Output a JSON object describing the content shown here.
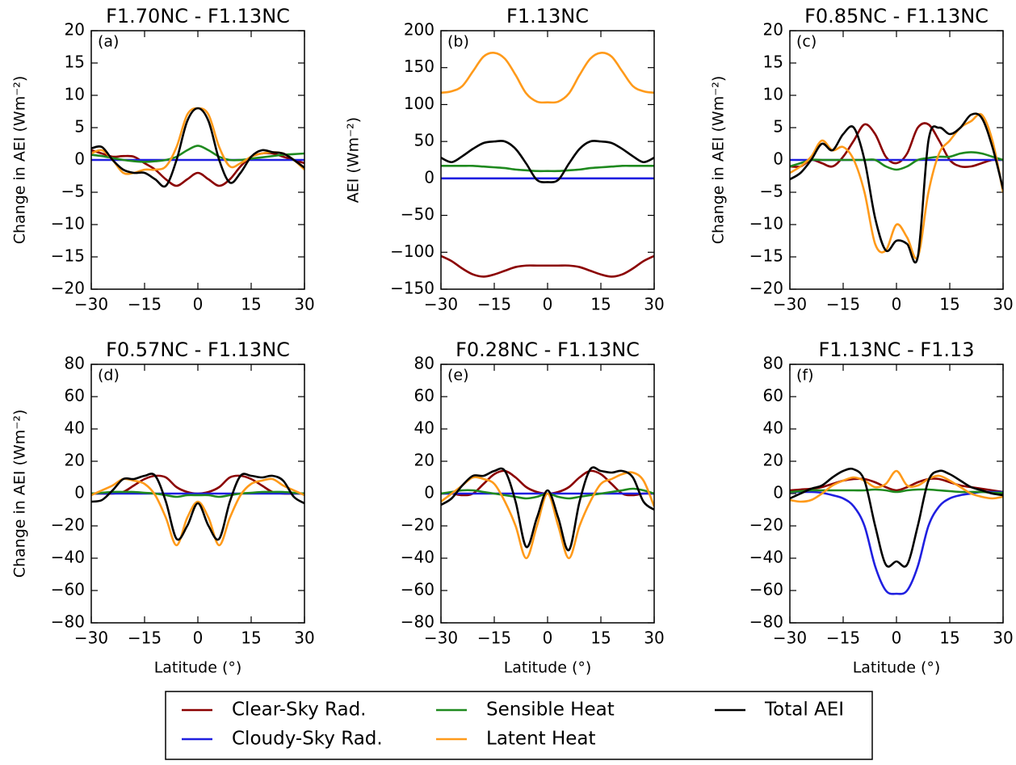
{
  "chart_data": [
    {
      "type": "line",
      "title": "F1.70NC - F1.13NC",
      "panel_label": "(a)",
      "y_label": "Change in AEI (Wm⁻²)",
      "x": [
        -30,
        -27,
        -24,
        -21,
        -18,
        -15,
        -12,
        -9,
        -6,
        -3,
        0,
        3,
        6,
        9,
        12,
        15,
        18,
        21,
        24,
        27,
        30
      ],
      "xlim": [
        -30,
        30
      ],
      "xticks": [
        {
          "value": -30,
          "label": "−30"
        },
        {
          "value": -15,
          "label": "−15"
        },
        0,
        15,
        30
      ],
      "ylim": [
        -20,
        20
      ],
      "yticks": [
        {
          "value": -20,
          "label": "−20"
        },
        {
          "value": -15,
          "label": "−15"
        },
        {
          "value": -10,
          "label": "−10"
        },
        {
          "value": -5,
          "label": "−5"
        },
        0,
        5,
        10,
        15,
        20
      ],
      "series": [
        {
          "values": [
            1.5,
            1,
            0.5,
            0.6,
            0.5,
            -0.5,
            -1.5,
            -3,
            -4,
            -3,
            -2,
            -3,
            -4,
            -3,
            -1,
            0.5,
            1,
            1,
            0.5,
            0,
            -0.5
          ]
        },
        {
          "values": [
            0,
            0,
            0,
            0,
            0,
            0,
            0,
            0,
            0,
            0,
            0,
            0,
            0,
            0,
            0,
            0,
            0,
            0,
            0,
            0,
            0
          ]
        },
        {
          "values": [
            0.8,
            0.6,
            0.3,
            0,
            -0.2,
            -0.3,
            -0.2,
            0,
            0.5,
            1.5,
            2.2,
            1.5,
            0.5,
            0,
            0,
            0.2,
            0.4,
            0.6,
            0.8,
            0.9,
            1
          ]
        },
        {
          "values": [
            1,
            1.5,
            0,
            -2,
            -2,
            -1.5,
            -1.5,
            -1,
            2,
            7,
            8,
            7,
            2,
            -1,
            -0.5,
            0.5,
            1,
            1.2,
            1,
            0,
            -1.5
          ]
        },
        {
          "values": [
            1.8,
            2,
            0,
            -1.5,
            -2,
            -2,
            -3,
            -4,
            0,
            6,
            8,
            6,
            0,
            -3.5,
            -2,
            0.5,
            1.5,
            1.2,
            1,
            0,
            -1.2
          ]
        }
      ]
    },
    {
      "type": "line",
      "title": "F1.13NC",
      "panel_label": "(b)",
      "y_label": "AEI (Wm⁻²)",
      "x": [
        -30,
        -27,
        -24,
        -21,
        -18,
        -15,
        -12,
        -9,
        -6,
        -3,
        0,
        3,
        6,
        9,
        12,
        15,
        18,
        21,
        24,
        27,
        30
      ],
      "xlim": [
        -30,
        30
      ],
      "xticks": [
        {
          "value": -30,
          "label": "−30"
        },
        {
          "value": -15,
          "label": "−15"
        },
        0,
        15,
        30
      ],
      "ylim": [
        -150,
        200
      ],
      "yticks": [
        {
          "value": -150,
          "label": "−150"
        },
        {
          "value": -100,
          "label": "−100"
        },
        {
          "value": -50,
          "label": "−50"
        },
        0,
        50,
        100,
        150,
        200
      ],
      "series": [
        {
          "values": [
            -105,
            -112,
            -122,
            -130,
            -133,
            -130,
            -125,
            -120,
            -118,
            -118,
            -118,
            -118,
            -118,
            -120,
            -125,
            -130,
            -133,
            -130,
            -122,
            -112,
            -105
          ]
        },
        {
          "values": [
            0,
            0,
            0,
            0,
            0,
            0,
            0,
            0,
            0,
            0,
            0,
            0,
            0,
            0,
            0,
            0,
            0,
            0,
            0,
            0,
            0
          ]
        },
        {
          "values": [
            17,
            17,
            17,
            17,
            16,
            15,
            14,
            12,
            11,
            10,
            10,
            10,
            11,
            12,
            14,
            15,
            16,
            17,
            17,
            17,
            17
          ]
        },
        {
          "values": [
            116,
            118,
            125,
            145,
            165,
            170,
            162,
            140,
            115,
            104,
            103,
            104,
            115,
            140,
            162,
            170,
            165,
            145,
            125,
            118,
            116
          ]
        },
        {
          "values": [
            28,
            22,
            30,
            40,
            48,
            50,
            50,
            40,
            20,
            -2,
            -5,
            -2,
            20,
            40,
            50,
            50,
            48,
            40,
            30,
            22,
            28
          ]
        }
      ]
    },
    {
      "type": "line",
      "title": "F0.85NC - F1.13NC",
      "panel_label": "(c)",
      "y_label": "Change in AEI (Wm⁻²)",
      "x": [
        -30,
        -27,
        -24,
        -21,
        -18,
        -15,
        -12,
        -9,
        -6,
        -3,
        0,
        3,
        6,
        9,
        12,
        15,
        18,
        21,
        24,
        27,
        30
      ],
      "xlim": [
        -30,
        30
      ],
      "xticks": [
        {
          "value": -30,
          "label": "−30"
        },
        {
          "value": -15,
          "label": "−15"
        },
        0,
        15,
        30
      ],
      "ylim": [
        -20,
        20
      ],
      "yticks": [
        {
          "value": -20,
          "label": "−20"
        },
        {
          "value": -15,
          "label": "−15"
        },
        {
          "value": -10,
          "label": "−10"
        },
        {
          "value": -5,
          "label": "−5"
        },
        0,
        5,
        10,
        15,
        20
      ],
      "series": [
        {
          "values": [
            -1,
            -1,
            0,
            -0.5,
            -1,
            0.5,
            3,
            5.5,
            4,
            0.5,
            -0.5,
            1,
            5,
            5.5,
            3,
            0,
            -1,
            -1,
            -0.5,
            0,
            0
          ]
        },
        {
          "values": [
            0,
            0,
            0,
            0,
            0,
            0,
            0,
            0,
            0,
            0,
            0,
            0,
            0,
            0,
            0,
            0,
            0,
            0,
            0,
            0,
            0
          ]
        },
        {
          "values": [
            -1,
            -0.5,
            0,
            0,
            0,
            0,
            0,
            0,
            0,
            -1,
            -1.5,
            -1,
            0,
            0.3,
            0.5,
            0.5,
            1,
            1.2,
            1,
            0.5,
            0
          ]
        },
        {
          "values": [
            -2,
            -1,
            0.5,
            3,
            1.5,
            2,
            0,
            -5,
            -13,
            -14,
            -10,
            -12,
            -15,
            -5,
            1,
            3,
            5,
            6,
            7,
            3,
            -5
          ]
        },
        {
          "values": [
            -3,
            -2,
            0,
            2.5,
            1.5,
            4,
            5,
            0,
            -9,
            -14,
            -12.5,
            -13,
            -15,
            3,
            5,
            4,
            5,
            7,
            6.5,
            2,
            -4.5
          ]
        }
      ]
    },
    {
      "type": "line",
      "title": "F0.57NC - F1.13NC",
      "panel_label": "(d)",
      "y_label": "Change in AEI (Wm⁻²)",
      "x_label": "Latitude (°)",
      "x": [
        -30,
        -27,
        -24,
        -21,
        -18,
        -15,
        -12,
        -9,
        -6,
        -3,
        0,
        3,
        6,
        9,
        12,
        15,
        18,
        21,
        24,
        27,
        30
      ],
      "xlim": [
        -30,
        30
      ],
      "xticks": [
        {
          "value": -30,
          "label": "−30"
        },
        {
          "value": -15,
          "label": "−15"
        },
        0,
        15,
        30
      ],
      "ylim": [
        -80,
        80
      ],
      "yticks": [
        {
          "value": -80,
          "label": "−80"
        },
        {
          "value": -60,
          "label": "−60"
        },
        {
          "value": -40,
          "label": "−40"
        },
        {
          "value": -20,
          "label": "−20"
        },
        0,
        20,
        40,
        60,
        80
      ],
      "series": [
        {
          "values": [
            0,
            0,
            0,
            1,
            5,
            9,
            11,
            10,
            4,
            1,
            0,
            1,
            4,
            10,
            11,
            9,
            5,
            1,
            0,
            0,
            0
          ]
        },
        {
          "values": [
            0,
            0,
            0,
            0,
            0,
            0,
            0,
            0,
            0,
            0,
            0,
            0,
            0,
            0,
            0,
            0,
            0,
            0,
            0,
            0,
            0
          ]
        },
        {
          "values": [
            0,
            0.5,
            1,
            1,
            1,
            0.5,
            0,
            -1,
            -2,
            -1,
            -1,
            -1,
            -2,
            -1,
            0,
            0.5,
            1,
            1,
            1,
            0.5,
            0
          ]
        },
        {
          "values": [
            -1,
            2,
            5,
            9,
            8,
            6,
            -1,
            -15,
            -32,
            -15,
            -5,
            -15,
            -32,
            -15,
            -1,
            6,
            8,
            9,
            5,
            2,
            -1
          ]
        },
        {
          "values": [
            -5,
            -4,
            2,
            9,
            9,
            11,
            11,
            -5,
            -28,
            -20,
            -6,
            -20,
            -28,
            -5,
            11,
            11,
            10,
            11,
            8,
            -2,
            -6
          ]
        }
      ]
    },
    {
      "type": "line",
      "title": "F0.28NC - F1.13NC",
      "panel_label": "(e)",
      "x_label": "Latitude (°)",
      "x": [
        -30,
        -27,
        -24,
        -21,
        -18,
        -15,
        -12,
        -9,
        -6,
        -3,
        0,
        3,
        6,
        9,
        12,
        15,
        18,
        21,
        24,
        27,
        30
      ],
      "xlim": [
        -30,
        30
      ],
      "xticks": [
        {
          "value": -30,
          "label": "−30"
        },
        {
          "value": -15,
          "label": "−15"
        },
        0,
        15,
        30
      ],
      "ylim": [
        -80,
        80
      ],
      "yticks": [
        {
          "value": -80,
          "label": "−80"
        },
        {
          "value": -60,
          "label": "−60"
        },
        {
          "value": -40,
          "label": "−40"
        },
        {
          "value": -20,
          "label": "−20"
        },
        0,
        20,
        40,
        60,
        80
      ],
      "series": [
        {
          "values": [
            0,
            0,
            -1,
            0,
            6,
            12,
            14,
            10,
            4,
            1,
            0,
            1,
            4,
            10,
            14,
            12,
            6,
            0,
            -1,
            0,
            0
          ]
        },
        {
          "values": [
            0,
            0,
            0,
            0,
            0,
            0,
            0,
            0,
            0,
            0,
            0,
            0,
            0,
            0,
            0,
            0,
            0,
            0,
            0,
            0,
            0
          ]
        },
        {
          "values": [
            0,
            1,
            2,
            2,
            1,
            0,
            -1,
            -2,
            -3,
            -2,
            0,
            -2,
            -3,
            -2,
            -1,
            0,
            1,
            2,
            3,
            2,
            0
          ]
        },
        {
          "values": [
            -5,
            0,
            5,
            10,
            9,
            6,
            -5,
            -20,
            -40,
            -20,
            0,
            -20,
            -40,
            -20,
            -5,
            6,
            9,
            12,
            13,
            8,
            -8
          ]
        },
        {
          "values": [
            -7,
            -3,
            5,
            11,
            11,
            14,
            14,
            -5,
            -33,
            -15,
            2,
            -15,
            -35,
            -5,
            15,
            14,
            13,
            14,
            10,
            -5,
            -10
          ]
        }
      ]
    },
    {
      "type": "line",
      "title": "F1.13NC - F1.13",
      "panel_label": "(f)",
      "x_label": "Latitude (°)",
      "x": [
        -30,
        -27,
        -24,
        -21,
        -18,
        -15,
        -12,
        -9,
        -6,
        -3,
        0,
        3,
        6,
        9,
        12,
        15,
        18,
        21,
        24,
        27,
        30
      ],
      "xlim": [
        -30,
        30
      ],
      "xticks": [
        {
          "value": -30,
          "label": "−30"
        },
        {
          "value": -15,
          "label": "−15"
        },
        0,
        15,
        30
      ],
      "ylim": [
        -80,
        80
      ],
      "yticks": [
        {
          "value": -80,
          "label": "−80"
        },
        {
          "value": -60,
          "label": "−60"
        },
        {
          "value": -40,
          "label": "−40"
        },
        {
          "value": -20,
          "label": "−20"
        },
        0,
        20,
        40,
        60,
        80
      ],
      "series": [
        {
          "values": [
            2,
            2.5,
            3,
            4,
            6,
            8,
            9,
            9,
            7,
            4,
            2,
            4,
            7,
            9,
            9,
            7,
            5,
            4,
            3,
            2,
            1
          ]
        },
        {
          "values": [
            1,
            1,
            1,
            0.5,
            -1,
            -3,
            -8,
            -20,
            -45,
            -60,
            -62,
            -60,
            -45,
            -20,
            -8,
            -3,
            -1,
            0,
            1,
            1,
            1
          ]
        },
        {
          "values": [
            1,
            1.5,
            2,
            2,
            2,
            2,
            2,
            2,
            2.5,
            2,
            1,
            2,
            2.5,
            2.5,
            2,
            1.5,
            1,
            1,
            1,
            0.5,
            0.5
          ]
        },
        {
          "values": [
            -4,
            -5,
            -4,
            0,
            5,
            8,
            10,
            8,
            4,
            6,
            14,
            5,
            5,
            9,
            11,
            8,
            4,
            0,
            -2,
            -3,
            -2
          ]
        },
        {
          "values": [
            -3,
            0,
            3,
            5,
            10,
            14,
            15,
            8,
            -20,
            -44,
            -42,
            -44,
            -20,
            8,
            14,
            12,
            8,
            4,
            2,
            0,
            -1
          ]
        }
      ]
    }
  ],
  "legend": [
    {
      "name": "Clear-Sky Rad.",
      "color": "#8b0000"
    },
    {
      "name": "Cloudy-Sky Rad.",
      "color": "#1f1fe0"
    },
    {
      "name": "Sensible Heat",
      "color": "#1f8a1f"
    },
    {
      "name": "Latent Heat",
      "color": "#ff9a1a"
    },
    {
      "name": "Total AEI",
      "color": "#000000"
    }
  ]
}
